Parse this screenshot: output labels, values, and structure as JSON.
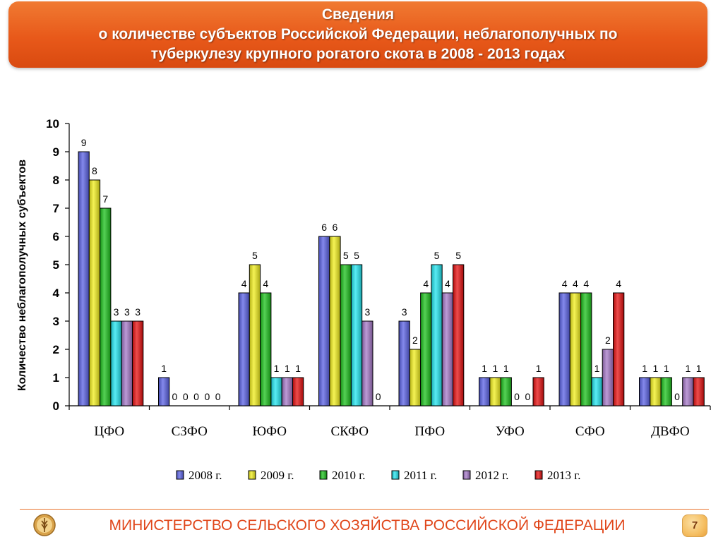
{
  "header": {
    "line1": "Сведения",
    "line2": "о количестве субъектов Российской Федерации, неблагополучных по",
    "line3": "туберкулезу крупного рогатого скота в 2008 - 2013 годах"
  },
  "footer": {
    "ministry": "МИНИСТЕРСТВО СЕЛЬСКОГО ХОЗЯЙСТВА РОССИЙСКОЙ ФЕДЕРАЦИИ",
    "page_number": "7"
  },
  "chart_data": {
    "type": "bar",
    "ylabel": "Количество неблагополучных субъектов",
    "ylim": [
      0,
      10
    ],
    "yticks": [
      "0",
      "1",
      "2",
      "3",
      "4",
      "5",
      "6",
      "7",
      "8",
      "9",
      "10"
    ],
    "grid": false,
    "legend_position": "bottom",
    "categories": [
      "ЦФО",
      "СЗФО",
      "ЮФО",
      "СКФО",
      "ПФО",
      "УФО",
      "СФО",
      "ДВФО"
    ],
    "series": [
      {
        "name": "2008 г.",
        "color": "#5b62e6",
        "values": [
          9,
          1,
          4,
          6,
          3,
          1,
          4,
          1
        ]
      },
      {
        "name": "2009 г.",
        "color": "#f2ef1c",
        "values": [
          8,
          0,
          5,
          6,
          2,
          1,
          4,
          1
        ]
      },
      {
        "name": "2010 г.",
        "color": "#1cc21c",
        "values": [
          7,
          0,
          4,
          5,
          4,
          1,
          4,
          1
        ]
      },
      {
        "name": "2011 г.",
        "color": "#22e6f0",
        "values": [
          3,
          0,
          1,
          5,
          5,
          0,
          1,
          0
        ]
      },
      {
        "name": "2012 г.",
        "color": "#a678c8",
        "values": [
          3,
          0,
          1,
          3,
          4,
          0,
          2,
          1
        ]
      },
      {
        "name": "2013 г.",
        "color": "#e81010",
        "values": [
          3,
          0,
          1,
          0,
          5,
          1,
          4,
          1
        ]
      }
    ]
  }
}
